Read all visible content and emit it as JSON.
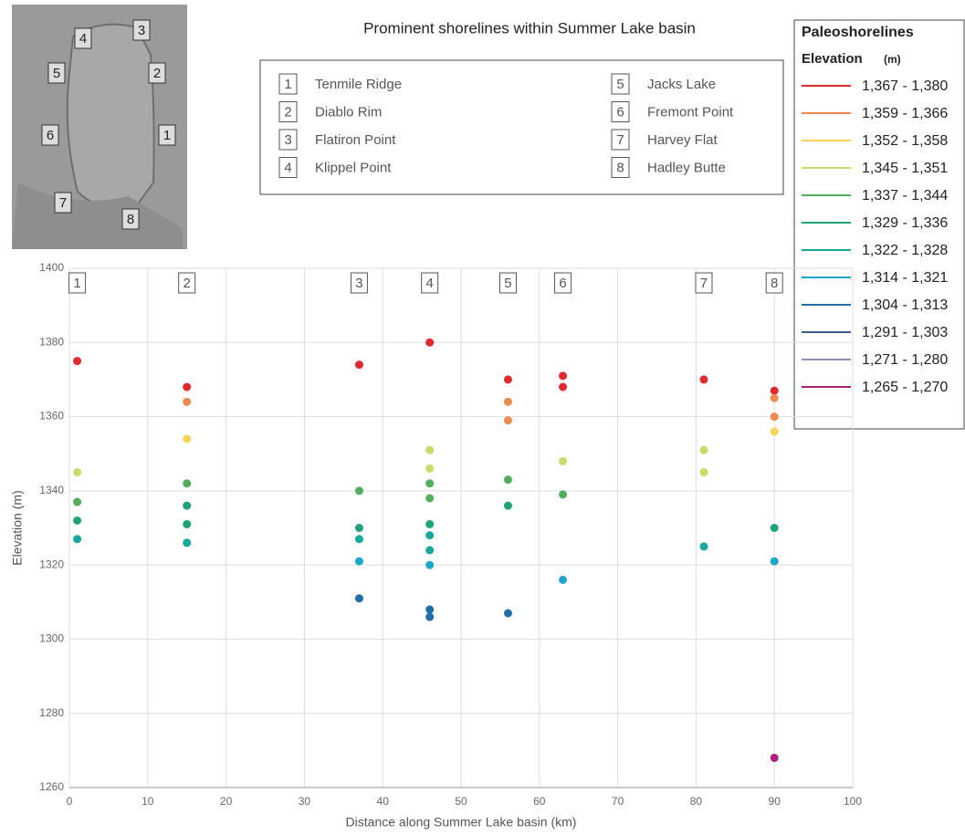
{
  "chart_data": {
    "type": "scatter",
    "title": "Prominent shorelines within Summer Lake basin",
    "x_label": "Distance along Summer Lake basin (km)",
    "y_label": "Elevation (m)",
    "xlim": [
      0,
      100
    ],
    "ylim": [
      1260,
      1400
    ],
    "xticks": [
      0,
      10,
      20,
      30,
      40,
      50,
      60,
      70,
      80,
      90,
      100
    ],
    "yticks": [
      1260,
      1280,
      1300,
      1320,
      1340,
      1360,
      1380,
      1400
    ],
    "grid": true,
    "legend_title": "Paleoshorelines",
    "legend_subtitle": "Elevation",
    "legend_unit": "(m)",
    "legend_position": "upper right",
    "sites": [
      {
        "number": 1,
        "name": "Tenmile Ridge",
        "x": 1
      },
      {
        "number": 2,
        "name": "Diablo Rim",
        "x": 15
      },
      {
        "number": 3,
        "name": "Flatiron Point",
        "x": 37
      },
      {
        "number": 4,
        "name": "Klippel Point",
        "x": 46
      },
      {
        "number": 5,
        "name": "Jacks Lake",
        "x": 56
      },
      {
        "number": 6,
        "name": "Fremont Point",
        "x": 63
      },
      {
        "number": 7,
        "name": "Harvey Flat",
        "x": 81
      },
      {
        "number": 8,
        "name": "Hadley Butte",
        "x": 90
      }
    ],
    "series": [
      {
        "name": "1,367 - 1,380",
        "color": "#e02a2e",
        "x": [
          1,
          15,
          37,
          46,
          56,
          63,
          63,
          81,
          90
        ],
        "values": [
          1375,
          1368,
          1374,
          1380,
          1370,
          1371,
          1368,
          1370,
          1367
        ]
      },
      {
        "name": "1,359 - 1,366",
        "color": "#ef8a4c",
        "x": [
          15,
          56,
          56,
          90,
          90
        ],
        "values": [
          1364,
          1364,
          1359,
          1365,
          1360
        ]
      },
      {
        "name": "1,352 - 1,358",
        "color": "#fad35c",
        "x": [
          15,
          90
        ],
        "values": [
          1354,
          1356
        ]
      },
      {
        "name": "1,345 - 1,351",
        "color": "#c8dc6a",
        "x": [
          1,
          46,
          46,
          63,
          81,
          81
        ],
        "values": [
          1345,
          1351,
          1346,
          1348,
          1351,
          1345
        ]
      },
      {
        "name": "1,337 - 1,344",
        "color": "#52ad5c",
        "x": [
          1,
          15,
          37,
          46,
          46,
          56,
          63
        ],
        "values": [
          1337,
          1342,
          1340,
          1342,
          1338,
          1343,
          1339
        ]
      },
      {
        "name": "1,329 - 1,336",
        "color": "#1ea276",
        "x": [
          1,
          15,
          15,
          37,
          46,
          56,
          90
        ],
        "values": [
          1332,
          1336,
          1331,
          1330,
          1331,
          1336,
          1330
        ]
      },
      {
        "name": "1,322 - 1,328",
        "color": "#17a79c",
        "x": [
          1,
          15,
          37,
          46,
          46,
          81
        ],
        "values": [
          1327,
          1326,
          1327,
          1328,
          1324,
          1325
        ]
      },
      {
        "name": "1,314 - 1,321",
        "color": "#1ea6cc",
        "x": [
          37,
          46,
          63,
          90
        ],
        "values": [
          1321,
          1320,
          1316,
          1321
        ]
      },
      {
        "name": "1,304 - 1,313",
        "color": "#1f6ea8",
        "x": [
          37,
          46,
          46,
          56
        ],
        "values": [
          1311,
          1308,
          1306,
          1307
        ]
      },
      {
        "name": "1,291 - 1,303",
        "color": "#3d5b8c",
        "x": [],
        "values": []
      },
      {
        "name": "1,271 - 1,280",
        "color": "#9a8ab4",
        "x": [],
        "values": []
      },
      {
        "name": "1,265 - 1,270",
        "color": "#b01e7c",
        "x": [
          90
        ],
        "values": [
          1268
        ]
      }
    ]
  }
}
